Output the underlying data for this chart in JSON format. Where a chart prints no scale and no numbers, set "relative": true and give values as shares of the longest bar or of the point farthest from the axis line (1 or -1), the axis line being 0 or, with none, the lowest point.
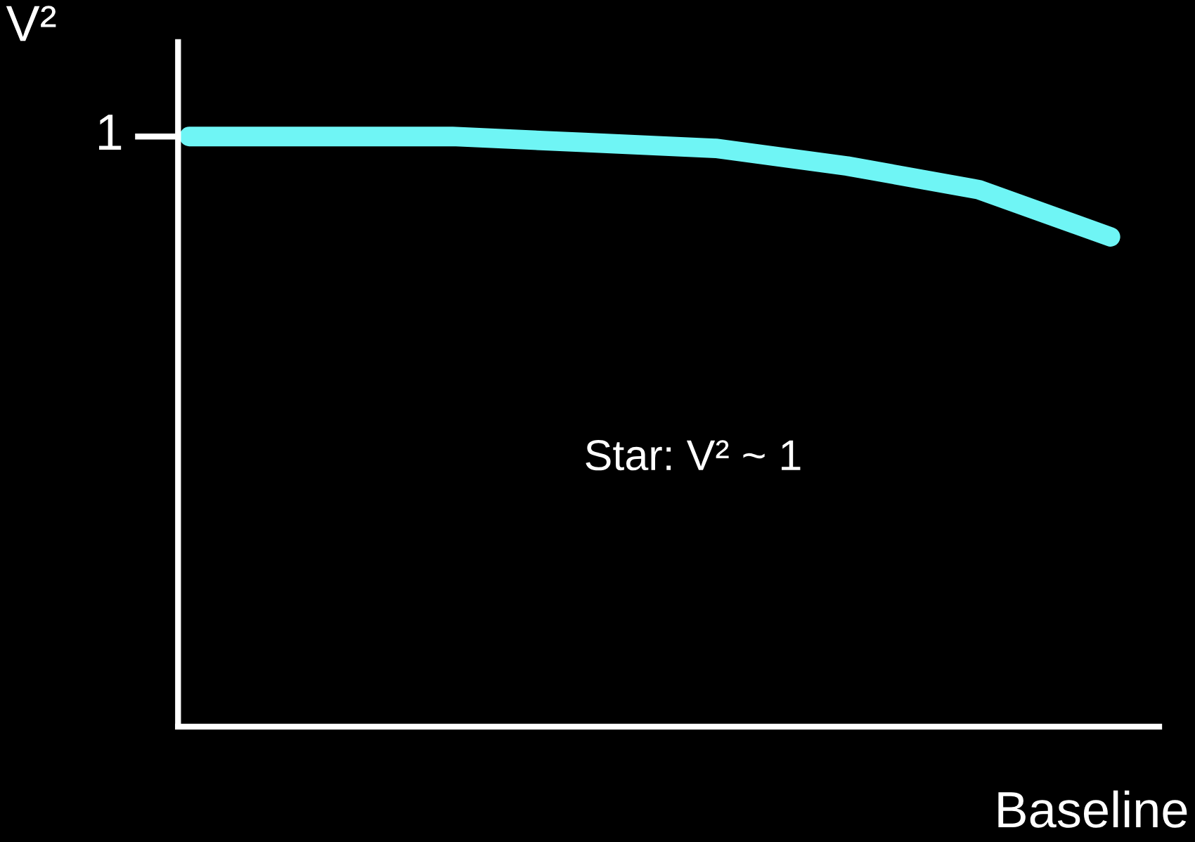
{
  "chart_data": {
    "type": "line",
    "relative": true,
    "categories": [
      null,
      null,
      null,
      null,
      null,
      null,
      null,
      null
    ],
    "series": [
      {
        "color": "#6ff5f5",
        "values": [
          1,
          1,
          1,
          0.99,
          0.98,
          0.95,
          0.91,
          0.83
        ]
      }
    ],
    "ylabel": "V²",
    "xlabel": "Baseline",
    "annotations": [
      "1",
      "Star: V² ~ 1"
    ],
    "grid": false,
    "legend": false,
    "line_style": "solid"
  }
}
